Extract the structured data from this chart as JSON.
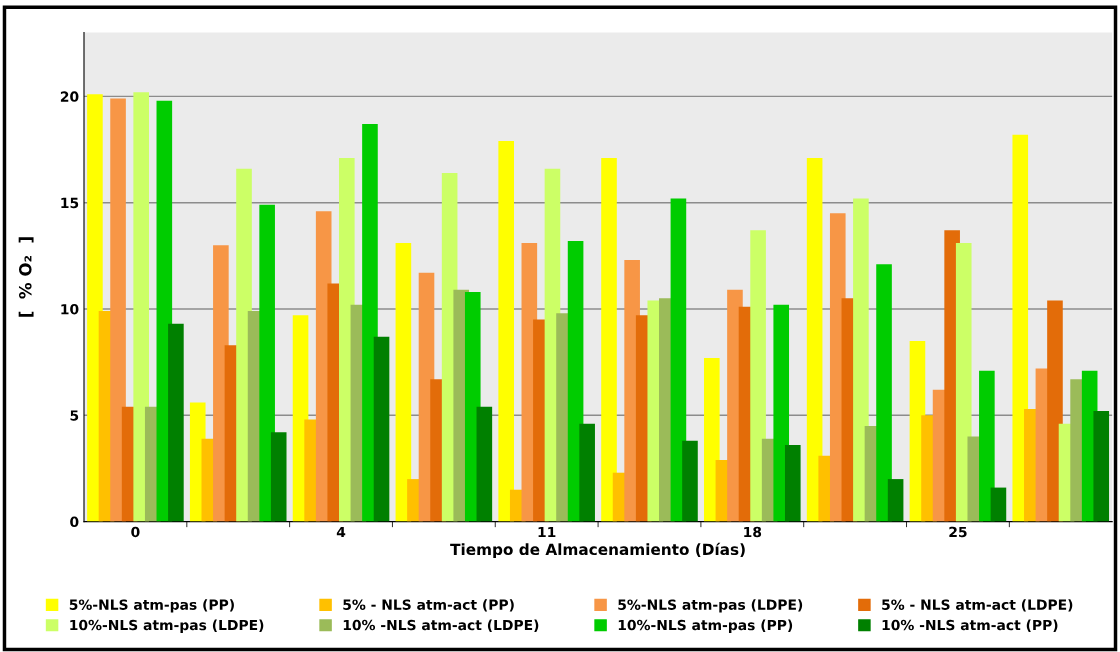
{
  "chart_data": {
    "type": "bar",
    "xlabel": "Tiempo de Almacenamiento (Días)",
    "ylabel": "[  % O₂  ]",
    "categories": [
      "0",
      null,
      "4",
      null,
      "11",
      null,
      "18",
      null,
      "25",
      null
    ],
    "ylim": [
      0,
      23
    ],
    "yticks": [
      0,
      5,
      10,
      15,
      20
    ],
    "grid": "y",
    "legend": "bottom",
    "series": [
      {
        "name": "5%-NLS atm-pas (PP)",
        "color": "#ffff00",
        "values": [
          20.1,
          5.6,
          9.7,
          13.1,
          17.9,
          17.1,
          7.7,
          17.1,
          8.5,
          18.2
        ]
      },
      {
        "name": "5% - NLS atm-act (PP)",
        "color": "#ffc000",
        "values": [
          9.9,
          3.9,
          4.8,
          2.0,
          1.5,
          2.3,
          2.9,
          3.1,
          5.0,
          5.3
        ]
      },
      {
        "name": "5%-NLS atm-pas (LDPE)",
        "color": "#f79646",
        "values": [
          19.9,
          13.0,
          14.6,
          11.7,
          13.1,
          12.3,
          10.9,
          14.5,
          6.2,
          7.2
        ]
      },
      {
        "name": "5% - NLS atm-act (LDPE)",
        "color": "#e36c09",
        "values": [
          5.4,
          8.3,
          11.2,
          6.7,
          9.5,
          9.7,
          10.1,
          10.5,
          13.7,
          10.4
        ]
      },
      {
        "name": "10%-NLS atm-pas (LDPE)",
        "color": "#ccff66",
        "values": [
          20.2,
          16.6,
          17.1,
          16.4,
          16.6,
          10.4,
          13.7,
          15.2,
          13.1,
          4.6
        ]
      },
      {
        "name": "10% -NLS atm-act (LDPE)",
        "color": "#9bbb59",
        "values": [
          5.4,
          9.9,
          10.2,
          10.9,
          9.8,
          10.5,
          3.9,
          4.5,
          4.0,
          6.7
        ]
      },
      {
        "name": "10%-NLS atm-pas (PP)",
        "color": "#00cc00",
        "values": [
          19.8,
          14.9,
          18.7,
          10.8,
          13.2,
          15.2,
          10.2,
          12.1,
          7.1,
          7.1
        ]
      },
      {
        "name": "10% -NLS atm-act (PP)",
        "color": "#008000",
        "values": [
          9.3,
          4.2,
          8.7,
          5.4,
          4.6,
          3.8,
          3.6,
          2.0,
          1.6,
          5.2
        ]
      }
    ]
  }
}
